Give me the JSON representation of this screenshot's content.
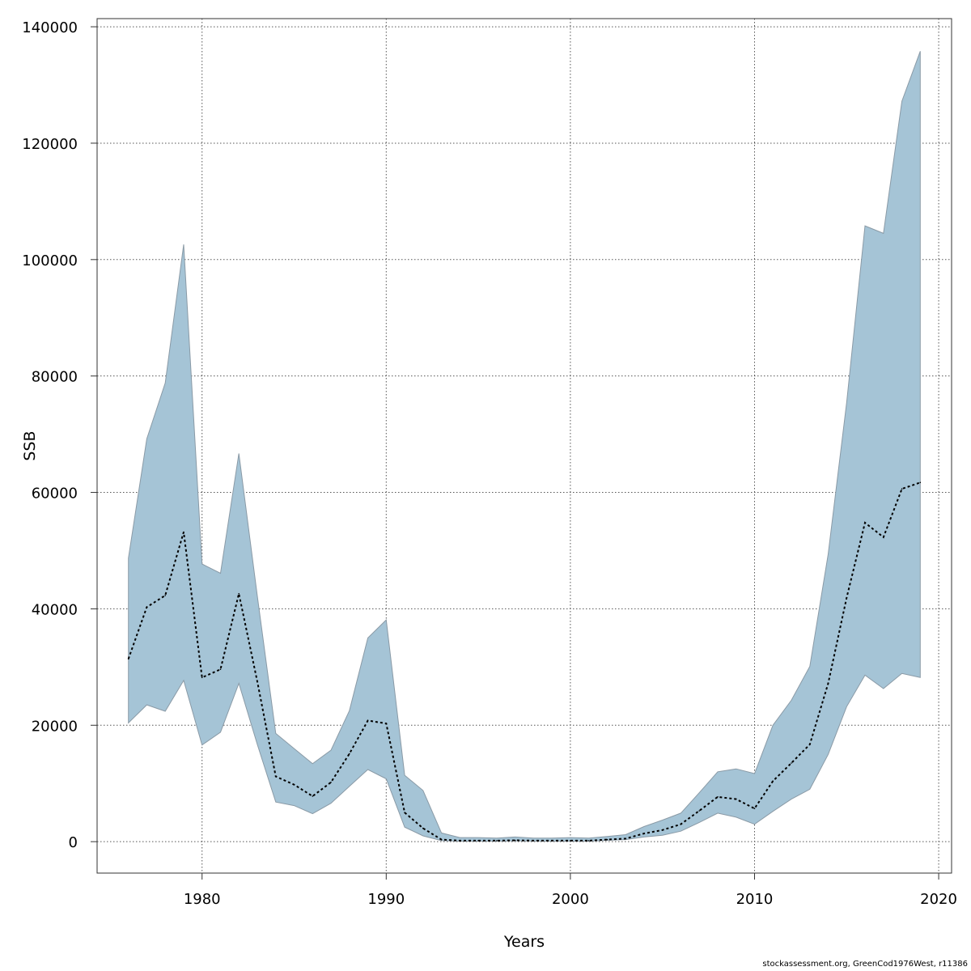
{
  "chart_data": {
    "type": "area",
    "title": "",
    "xlabel": "Years",
    "ylabel": "SSB",
    "xlim": [
      1974.3,
      2020.7
    ],
    "ylim": [
      -5400,
      141400
    ],
    "x_ticks": [
      1980,
      1990,
      2000,
      2010,
      2020
    ],
    "y_ticks": [
      0,
      20000,
      40000,
      60000,
      80000,
      100000,
      120000,
      140000
    ],
    "x_tick_labels": [
      "1980",
      "1990",
      "2000",
      "2010",
      "2020"
    ],
    "y_tick_labels": [
      "0",
      "20000",
      "40000",
      "60000",
      "80000",
      "100000",
      "120000",
      "140000"
    ],
    "grid": true,
    "band_color": "#a5c4d6",
    "band_edge_color": "#8a9aa6",
    "line_color": "#000000",
    "x": [
      1976,
      1977,
      1978,
      1979,
      1980,
      1981,
      1982,
      1983,
      1984,
      1985,
      1986,
      1987,
      1988,
      1989,
      1990,
      1991,
      1992,
      1993,
      1994,
      1995,
      1996,
      1997,
      1998,
      1999,
      2000,
      2001,
      2002,
      2003,
      2004,
      2005,
      2006,
      2007,
      2008,
      2009,
      2010,
      2011,
      2012,
      2013,
      2014,
      2015,
      2016,
      2017,
      2018,
      2019
    ],
    "series": [
      {
        "values": [
          31400,
          40300,
          42300,
          53200,
          28200,
          29600,
          42600,
          27500,
          11200,
          9800,
          7800,
          10200,
          15100,
          20800,
          20300,
          5000,
          2300,
          350,
          170,
          170,
          170,
          230,
          170,
          170,
          170,
          170,
          350,
          520,
          1400,
          2000,
          3000,
          5300,
          7700,
          7300,
          5700,
          10400,
          13500,
          16700,
          27200,
          41900,
          54800,
          52300,
          60600,
          61700
        ],
        "lower": [
          20400,
          23500,
          22400,
          27700,
          16600,
          18800,
          27200,
          16700,
          6800,
          6200,
          4800,
          6600,
          9500,
          12400,
          10800,
          2500,
          1000,
          170,
          90,
          90,
          90,
          140,
          100,
          90,
          90,
          90,
          230,
          350,
          800,
          1100,
          1800,
          3300,
          4900,
          4200,
          3000,
          5200,
          7300,
          9000,
          15000,
          23200,
          28600,
          26300,
          28900,
          28200
        ],
        "upper": [
          48700,
          69200,
          78800,
          102600,
          47700,
          46100,
          66700,
          42200,
          18600,
          16000,
          13400,
          15700,
          22500,
          35000,
          38100,
          11400,
          8800,
          1500,
          700,
          700,
          600,
          800,
          600,
          600,
          700,
          600,
          900,
          1200,
          2600,
          3700,
          4900,
          8400,
          12000,
          12500,
          11700,
          20000,
          24300,
          30100,
          49400,
          75400,
          105800,
          104500,
          127200,
          135800
        ]
      }
    ]
  },
  "footer": {
    "credit": "stockassessment.org, GreenCod1976West, r11386"
  }
}
